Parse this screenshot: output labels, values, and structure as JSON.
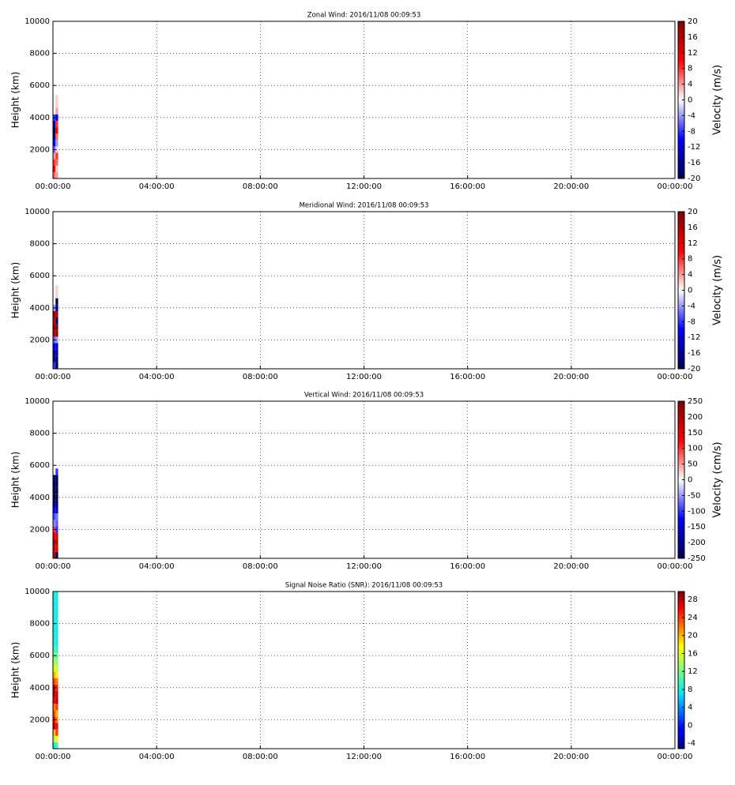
{
  "chart_data": [
    {
      "type": "heatmap",
      "title": "Zonal Wind: 2016/11/08 00:09:53",
      "ylabel": "Height (km)",
      "colorbar_label": "Velocity (m/s)",
      "colormap": "seismic",
      "grid": true,
      "xlim": [
        0,
        24
      ],
      "xticks": [
        {
          "value": 0,
          "label": "00:00:00"
        },
        {
          "value": 4,
          "label": "04:00:00"
        },
        {
          "value": 8,
          "label": "08:00:00"
        },
        {
          "value": 12,
          "label": "12:00:00"
        },
        {
          "value": 16,
          "label": "16:00:00"
        },
        {
          "value": 20,
          "label": "20:00:00"
        },
        {
          "value": 24,
          "label": "00:00:00"
        }
      ],
      "ylim": [
        200,
        10000
      ],
      "yticks": [
        2000,
        4000,
        6000,
        8000,
        10000
      ],
      "clim": [
        -20,
        20
      ],
      "cticks": [
        -20,
        -16,
        -12,
        -8,
        -4,
        0,
        4,
        8,
        12,
        16,
        20
      ],
      "x_bins": [
        0,
        0.1,
        0.2
      ],
      "y_bins": [
        200,
        600,
        1000,
        1400,
        1800,
        2200,
        2600,
        3000,
        3400,
        3800,
        4200,
        4600,
        5000,
        5400,
        5800
      ],
      "values": [
        [
          6,
          10,
          8,
          4,
          -6,
          -10,
          -18,
          -20,
          -14,
          -8,
          0,
          null,
          null,
          null
        ],
        [
          4,
          2,
          6,
          8,
          2,
          -4,
          6,
          10,
          8,
          -10,
          4,
          2,
          2,
          null
        ]
      ]
    },
    {
      "type": "heatmap",
      "title": "Meridional Wind: 2016/11/08 00:09:53",
      "ylabel": "Height (km)",
      "colorbar_label": "Velocity (m/s)",
      "colormap": "seismic",
      "grid": true,
      "xlim": [
        0,
        24
      ],
      "xticks": [
        {
          "value": 0,
          "label": "00:00:00"
        },
        {
          "value": 4,
          "label": "04:00:00"
        },
        {
          "value": 8,
          "label": "08:00:00"
        },
        {
          "value": 12,
          "label": "12:00:00"
        },
        {
          "value": 16,
          "label": "16:00:00"
        },
        {
          "value": 20,
          "label": "20:00:00"
        },
        {
          "value": 24,
          "label": "00:00:00"
        }
      ],
      "ylim": [
        200,
        10000
      ],
      "yticks": [
        2000,
        4000,
        6000,
        8000,
        10000
      ],
      "clim": [
        -20,
        20
      ],
      "cticks": [
        -20,
        -16,
        -12,
        -8,
        -4,
        0,
        4,
        8,
        12,
        16,
        20
      ],
      "x_bins": [
        0,
        0.1,
        0.2
      ],
      "y_bins": [
        200,
        600,
        1000,
        1400,
        1800,
        2200,
        2600,
        3000,
        3400,
        3800,
        4200,
        4600,
        5000,
        5400,
        5800
      ],
      "values": [
        [
          -8,
          -16,
          -18,
          -10,
          -6,
          16,
          20,
          14,
          18,
          -4,
          0,
          null,
          null,
          null
        ],
        [
          -20,
          -18,
          -14,
          -12,
          -4,
          18,
          20,
          -18,
          16,
          -16,
          -20,
          2,
          2,
          null
        ]
      ]
    },
    {
      "type": "heatmap",
      "title": "Vertical Wind: 2016/11/08 00:09:53",
      "ylabel": "Height (km)",
      "colorbar_label": "Velocity (cm/s)",
      "colormap": "seismic",
      "grid": true,
      "xlim": [
        0,
        24
      ],
      "xticks": [
        {
          "value": 0,
          "label": "00:00:00"
        },
        {
          "value": 4,
          "label": "04:00:00"
        },
        {
          "value": 8,
          "label": "08:00:00"
        },
        {
          "value": 12,
          "label": "12:00:00"
        },
        {
          "value": 16,
          "label": "16:00:00"
        },
        {
          "value": 20,
          "label": "20:00:00"
        },
        {
          "value": 24,
          "label": "00:00:00"
        }
      ],
      "ylim": [
        200,
        10000
      ],
      "yticks": [
        2000,
        4000,
        6000,
        8000,
        10000
      ],
      "clim": [
        -250,
        250
      ],
      "cticks": [
        -250,
        -200,
        -150,
        -100,
        -50,
        0,
        50,
        100,
        150,
        200,
        250
      ],
      "x_bins": [
        0,
        0.1,
        0.2
      ],
      "y_bins": [
        200,
        600,
        1000,
        1400,
        1800,
        2200,
        2600,
        3000,
        3400,
        3800,
        4200,
        4600,
        5000,
        5400,
        5800
      ],
      "values": [
        [
          200,
          180,
          220,
          150,
          100,
          -60,
          -90,
          -120,
          -200,
          -250,
          -240,
          -250,
          -220,
          null
        ],
        [
          -250,
          150,
          200,
          160,
          -100,
          -80,
          -70,
          -150,
          -220,
          -250,
          -250,
          -250,
          -240,
          -100
        ]
      ]
    },
    {
      "type": "heatmap",
      "title": "Signal Noise Ratio (SNR): 2016/11/08 00:09:53",
      "ylabel": "Height (km)",
      "colormap": "jet",
      "grid": true,
      "xlim": [
        0,
        24
      ],
      "xticks": [
        {
          "value": 0,
          "label": "00:00:00"
        },
        {
          "value": 4,
          "label": "04:00:00"
        },
        {
          "value": 8,
          "label": "08:00:00"
        },
        {
          "value": 12,
          "label": "12:00:00"
        },
        {
          "value": 16,
          "label": "16:00:00"
        },
        {
          "value": 20,
          "label": "20:00:00"
        },
        {
          "value": 24,
          "label": "00:00:00"
        }
      ],
      "ylim": [
        200,
        10000
      ],
      "yticks": [
        2000,
        4000,
        6000,
        8000,
        10000
      ],
      "clim": [
        -5.2,
        29.8
      ],
      "cticks": [
        -4,
        0,
        4,
        8,
        12,
        16,
        20,
        24,
        28
      ],
      "x_bins": [
        0,
        0.1,
        0.2
      ],
      "y_bins": [
        200,
        600,
        1000,
        1400,
        1800,
        2200,
        2600,
        3000,
        3400,
        3800,
        4200,
        4600,
        5000,
        5400,
        5800,
        6200,
        6600,
        7000,
        7400,
        7800,
        8200,
        8600,
        9000,
        9400,
        9800,
        10000
      ],
      "values": [
        [
          8,
          14,
          20,
          28,
          26,
          24,
          22,
          26,
          28,
          28,
          24,
          20,
          16,
          14,
          12,
          10,
          9,
          8,
          8,
          8,
          8,
          8,
          8,
          8,
          8
        ],
        [
          10,
          18,
          24,
          26,
          22,
          20,
          24,
          28,
          27,
          25,
          22,
          18,
          15,
          13,
          11,
          9,
          8,
          8,
          8,
          8,
          8,
          8,
          8,
          8,
          8
        ]
      ]
    }
  ]
}
